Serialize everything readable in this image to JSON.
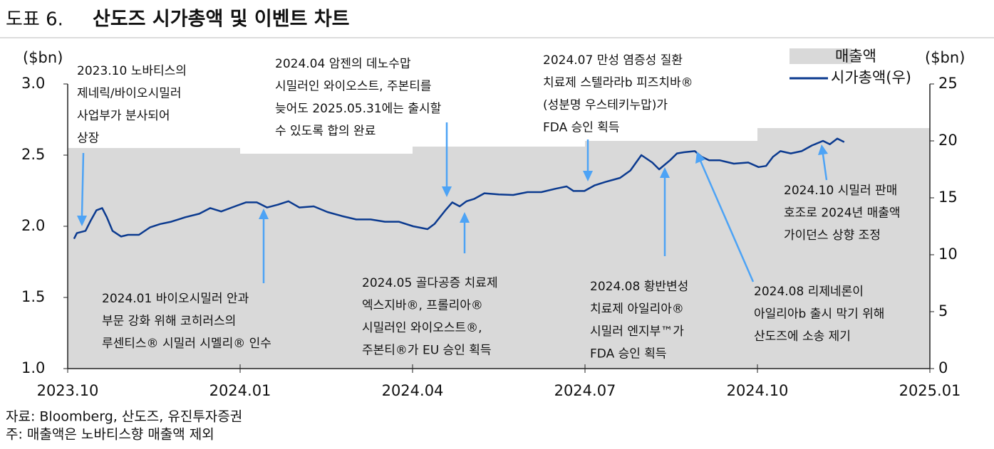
{
  "chart_data": {
    "type": "bar-line",
    "figure_label": "도표 6.",
    "title": "산도즈 시가총액 및 이벤트 차트",
    "y_label": "($bn)",
    "y2_label": "($bn)",
    "source": "자료: Bloomberg, 산도즈, 유진투자증권",
    "note": "주: 매출액은 노바티스향 매출액 제외",
    "xlim": [
      0,
      15
    ],
    "xticks": [
      {
        "value": 0,
        "label": "2023.10"
      },
      {
        "value": 3,
        "label": "2024.01"
      },
      {
        "value": 6,
        "label": "2024.04"
      },
      {
        "value": 9,
        "label": "2024.07"
      },
      {
        "value": 12,
        "label": "2024.10"
      },
      {
        "value": 15,
        "label": "2025.01"
      }
    ],
    "ylim": [
      1.0,
      3.0
    ],
    "yticks": [
      {
        "value": 1.0,
        "label": "1.0"
      },
      {
        "value": 1.5,
        "label": "1.5"
      },
      {
        "value": 2.0,
        "label": "2.0"
      },
      {
        "value": 2.5,
        "label": "2.5"
      },
      {
        "value": 3.0,
        "label": "3.0"
      }
    ],
    "y2lim": [
      0,
      25
    ],
    "y2ticks": [
      0,
      5,
      10,
      15,
      20,
      25
    ],
    "series": [
      {
        "name": "매출액",
        "color": "#d9d9d9",
        "x": [
          0,
          3,
          6,
          9,
          12
        ],
        "values": [
          2.55,
          2.51,
          2.56,
          2.6,
          2.69
        ]
      },
      {
        "name": "시가총액(우)",
        "color": "#0b3a8f",
        "axis": "y2",
        "x": [
          0.11,
          0.16,
          0.31,
          0.4,
          0.5,
          0.6,
          0.68,
          0.78,
          0.93,
          1.05,
          1.24,
          1.43,
          1.61,
          1.8,
          2.05,
          2.29,
          2.48,
          2.67,
          2.91,
          3.1,
          3.29,
          3.47,
          3.66,
          3.84,
          4.03,
          4.28,
          4.52,
          4.77,
          5.02,
          5.27,
          5.52,
          5.76,
          6.01,
          6.26,
          6.38,
          6.57,
          6.69,
          6.82,
          6.94,
          7.07,
          7.25,
          7.5,
          7.75,
          8.0,
          8.24,
          8.49,
          8.68,
          8.8,
          8.99,
          9.17,
          9.36,
          9.61,
          9.79,
          9.98,
          10.17,
          10.29,
          10.48,
          10.6,
          10.72,
          10.91,
          11.03,
          11.16,
          11.34,
          11.59,
          11.84,
          12.02,
          12.15,
          12.27,
          12.4,
          12.58,
          12.77,
          12.95,
          13.14,
          13.26,
          13.39,
          13.51
        ],
        "values": [
          11.4,
          11.9,
          12.1,
          13.0,
          13.9,
          14.1,
          13.3,
          12.1,
          11.6,
          11.75,
          11.75,
          12.4,
          12.7,
          12.9,
          13.3,
          13.6,
          14.1,
          13.8,
          14.25,
          14.6,
          14.6,
          14.15,
          14.4,
          14.7,
          14.15,
          14.25,
          13.75,
          13.4,
          13.1,
          13.1,
          12.9,
          12.9,
          12.5,
          12.25,
          12.7,
          13.9,
          14.6,
          14.25,
          14.7,
          14.9,
          15.4,
          15.3,
          15.25,
          15.5,
          15.5,
          15.8,
          16.0,
          15.6,
          15.6,
          16.1,
          16.4,
          16.75,
          17.4,
          18.75,
          18.1,
          17.5,
          18.3,
          18.9,
          19.0,
          19.1,
          18.6,
          18.3,
          18.3,
          18.0,
          18.1,
          17.7,
          17.8,
          18.6,
          19.1,
          18.9,
          19.1,
          19.6,
          20.0,
          19.7,
          20.2,
          19.9
        ]
      }
    ],
    "annotations": [
      [
        "2023.10 노바티스의",
        "제네릭/바이오시밀러",
        "사업부가 분사되어",
        "상장"
      ],
      [
        "2024.01 바이오시밀러 안과",
        "부문 강화 위해 코히러스의",
        "루센티스® 시밀러 시멜리® 인수"
      ],
      [
        "2024.04 암젠의 데노수맙",
        "시밀러인 와이오스트, 주본티를",
        "늦어도 2025.05.31에는 출시할",
        "수 있도록 합의 완료"
      ],
      [
        "2024.05 골다공증 치료제",
        "엑스지바®, 프롤리아®",
        "시밀러인 와이오스트®,",
        "주본티®가 EU 승인 획득"
      ],
      [
        "2024.07 만성 염증성 질환",
        "치료제 스텔라라b 피즈치바®",
        "(성분명 우스테키누맙)가",
        "FDA 승인 획득"
      ],
      [
        "2024.08 황반변성",
        "치료제 아일리아®",
        "시밀러 엔지부™가",
        "FDA 승인 획득"
      ],
      [
        "2024.08 리제네론이",
        "아일리아b 출시 막기 위해",
        "산도즈에 소송 제기"
      ],
      [
        "2024.10 시밀러 판매",
        "호조로 2024년 매출액",
        "가이던스 상향 조정"
      ]
    ]
  }
}
